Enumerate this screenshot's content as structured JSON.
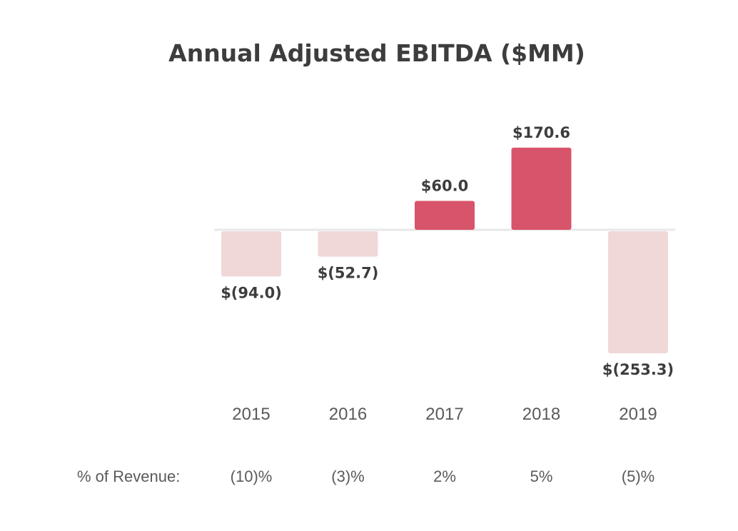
{
  "colors": {
    "positive": "#d8546a",
    "negative": "#f0d8d8",
    "baseline": "#e8e8e8"
  },
  "chart_data": {
    "type": "bar",
    "title": "Annual Adjusted EBITDA ($MM)",
    "categories": [
      "2015",
      "2016",
      "2017",
      "2018",
      "2019"
    ],
    "values": [
      -94.0,
      -52.7,
      60.0,
      170.6,
      -253.3
    ],
    "value_labels": [
      "$(94.0)",
      "$(52.7)",
      "$60.0",
      "$170.6",
      "$(253.3)"
    ],
    "revenue_row_label": "% of Revenue:",
    "revenue_pct": [
      "(10)%",
      "(3)%",
      "2%",
      "5%",
      "(5)%"
    ],
    "xlabel": "",
    "ylabel": "",
    "ylim": [
      -253.3,
      170.6
    ],
    "grid": false
  }
}
